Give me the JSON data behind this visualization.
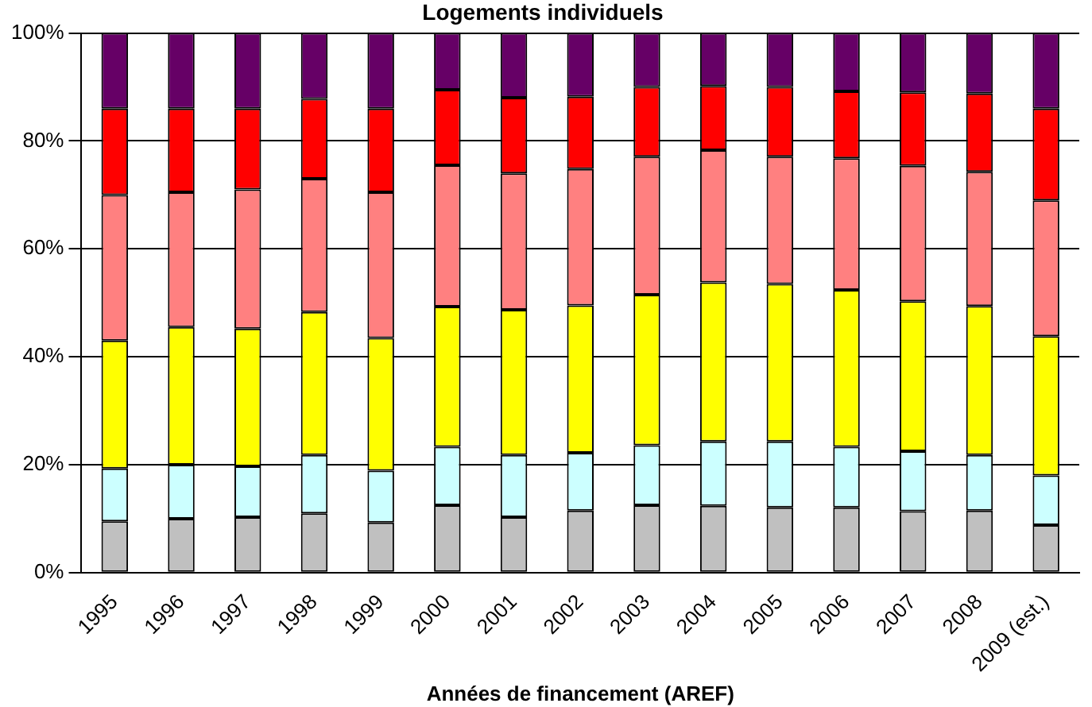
{
  "chart_data": {
    "type": "bar",
    "title": "Logements individuels",
    "xlabel": "Années de financement (AREF)",
    "stacked": true,
    "grid": "y",
    "legend": false,
    "categories": [
      "1995",
      "1996",
      "1997",
      "1998",
      "1999",
      "2000",
      "2001",
      "2002",
      "2003",
      "2004",
      "2005",
      "2006",
      "2007",
      "2008",
      "2009 (est.)"
    ],
    "ylim": [
      0,
      100
    ],
    "yticks": [
      {
        "value": 0,
        "label": "0%"
      },
      {
        "value": 20,
        "label": "20%"
      },
      {
        "value": 40,
        "label": "40%"
      },
      {
        "value": 60,
        "label": "60%"
      },
      {
        "value": 80,
        "label": "80%"
      },
      {
        "value": 100,
        "label": "100%"
      }
    ],
    "series": [
      {
        "color": "#c0c0c0",
        "values": [
          9.5,
          10,
          10.3,
          11,
          9.3,
          12.5,
          10.3,
          11.5,
          12.5,
          12.4,
          12.1,
          12.1,
          11.4,
          11.5,
          8.8
        ]
      },
      {
        "color": "#ccffff",
        "values": [
          9.8,
          10,
          9.4,
          10.8,
          9.6,
          10.8,
          11.5,
          10.7,
          11.1,
          11.9,
          12.2,
          11.2,
          11.1,
          10.3,
          9.2
        ]
      },
      {
        "color": "#ffff00",
        "values": [
          23.7,
          25.5,
          25.5,
          26.5,
          24.6,
          26,
          26.9,
          27.3,
          27.9,
          29.5,
          29.2,
          29.1,
          27.8,
          27.6,
          25.8
        ]
      },
      {
        "color": "#ff8080",
        "values": [
          27,
          25,
          25.8,
          24.7,
          27,
          26.2,
          25.3,
          25.3,
          25.6,
          24.5,
          23.6,
          24.4,
          25.1,
          24.9,
          25.2
        ]
      },
      {
        "color": "#ff0000",
        "values": [
          16,
          15.5,
          15,
          14.8,
          15.5,
          14,
          14,
          13.4,
          12.9,
          11.9,
          12.9,
          12.4,
          13.6,
          14.5,
          17
        ]
      },
      {
        "color": "#660066",
        "values": [
          14,
          14,
          14,
          12.2,
          14,
          10.5,
          12,
          11.8,
          10,
          9.8,
          10,
          10.8,
          11,
          11.2,
          14
        ]
      }
    ]
  }
}
